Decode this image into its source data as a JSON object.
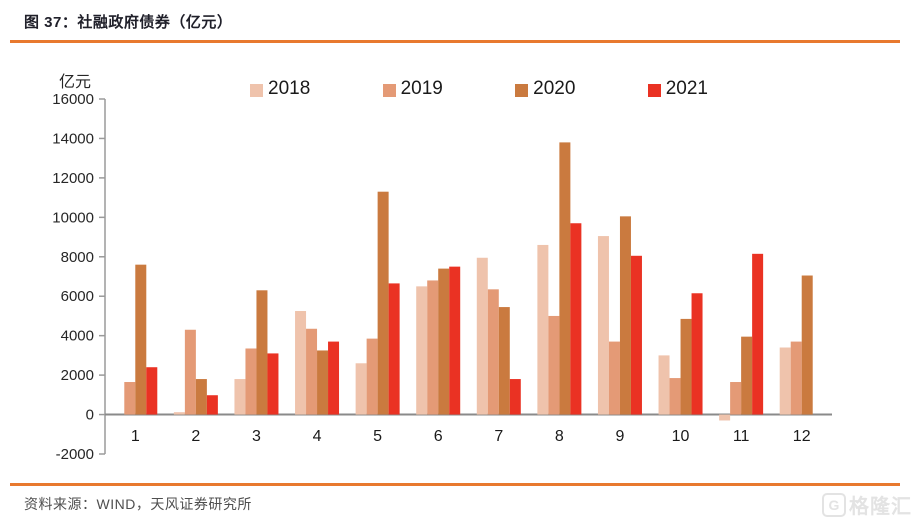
{
  "header": {
    "title": "图 37：社融政府债券（亿元）"
  },
  "footer": {
    "source": "资料来源：WIND，天风证券研究所",
    "watermark": "格隆汇",
    "watermark_icon": "G"
  },
  "colors": {
    "accent_rule": "#E8792F",
    "axis": "#9a9a9a",
    "zero_line": "#8a8a8a",
    "title_text": "#20202a",
    "tick_text": "#262626",
    "source_text": "#4f4f4f",
    "watermark_gray": "#e3e3e3"
  },
  "chart_data": {
    "type": "bar",
    "title": "社融政府债券（亿元）",
    "ylabel": "亿元",
    "xlabel": "",
    "ylim": [
      -2000,
      16000
    ],
    "yticks": [
      -2000,
      0,
      2000,
      4000,
      6000,
      8000,
      10000,
      12000,
      14000,
      16000
    ],
    "grid": false,
    "legend_position": "top",
    "categories": [
      "1",
      "2",
      "3",
      "4",
      "5",
      "6",
      "7",
      "8",
      "9",
      "10",
      "11",
      "12"
    ],
    "series": [
      {
        "name": "2018",
        "color": "#EFC3AC",
        "values": [
          0,
          120,
          1800,
          5250,
          2600,
          6500,
          7950,
          8600,
          9050,
          3000,
          -300,
          3400
        ]
      },
      {
        "name": "2019",
        "color": "#E49A76",
        "values": [
          1650,
          4300,
          3350,
          4350,
          3850,
          6800,
          6350,
          5000,
          3700,
          1850,
          1650,
          3700
        ]
      },
      {
        "name": "2020",
        "color": "#CA7A3F",
        "values": [
          7600,
          1800,
          6300,
          3250,
          11300,
          7400,
          5450,
          13800,
          10050,
          4850,
          3950,
          7050
        ]
      },
      {
        "name": "2021",
        "color": "#EA3223",
        "values": [
          2400,
          980,
          3100,
          3700,
          6650,
          7500,
          1800,
          9700,
          8050,
          6150,
          8150,
          null
        ]
      }
    ]
  }
}
